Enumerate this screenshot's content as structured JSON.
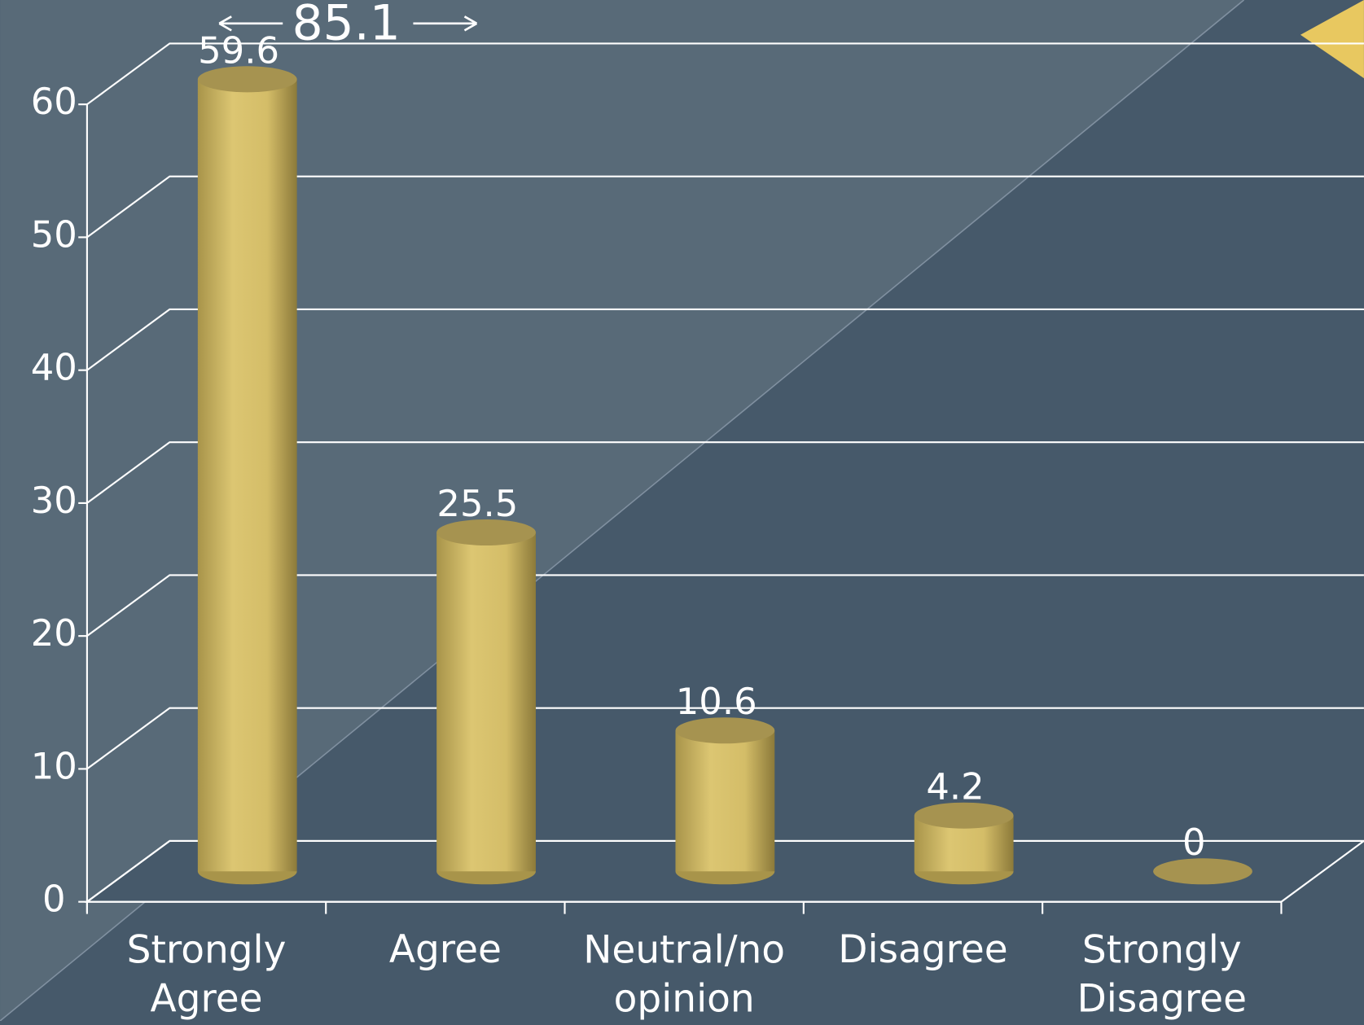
{
  "chart_data": {
    "type": "bar3d",
    "annotation": "85.1",
    "categories": [
      "Strongly Agree",
      "Agree",
      "Neutral/no opinion",
      "Disagree",
      "Strongly Disagree"
    ],
    "values": [
      59.6,
      25.5,
      10.6,
      4.2,
      0
    ],
    "color": "#d6c06a",
    "ylim": [
      0,
      60
    ],
    "yticks": [
      0,
      10,
      20,
      30,
      40,
      50,
      60
    ],
    "grid": true
  }
}
